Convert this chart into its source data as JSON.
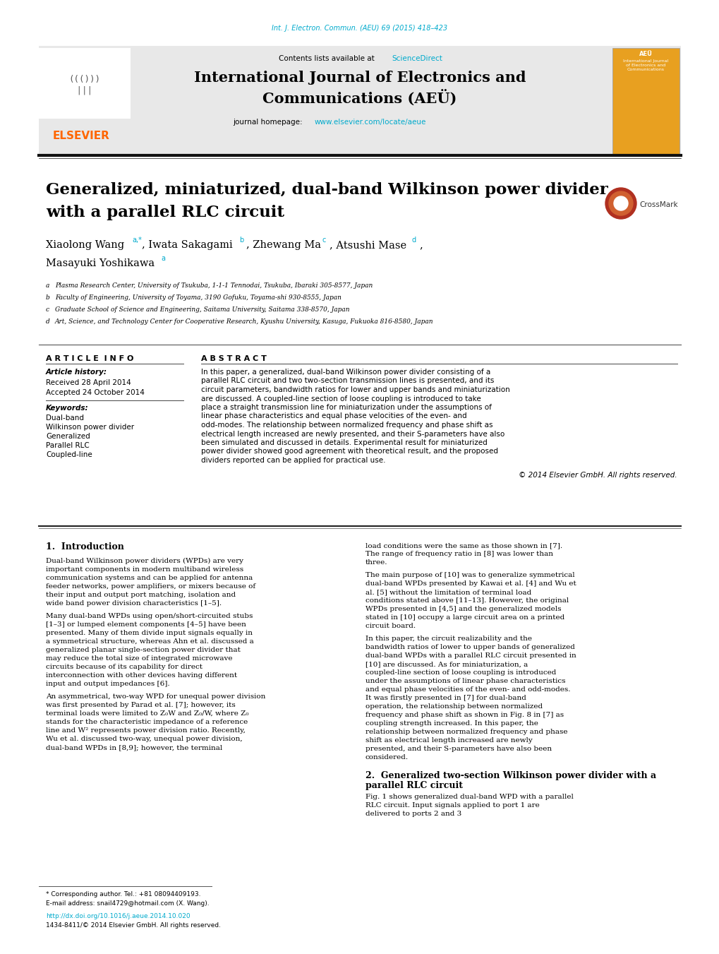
{
  "page_width": 10.2,
  "page_height": 13.51,
  "bg_color": "#ffffff",
  "journal_ref": "Int. J. Electron. Commun. (AEU) 69 (2015) 418–423",
  "journal_ref_color": "#00aacc",
  "header_bg": "#e8e8e8",
  "sciencedirect_color": "#00aacc",
  "journal_title_line1": "International Journal of Electronics and",
  "journal_title_line2": "Communications (AEÜ)",
  "homepage_url_color": "#00aacc",
  "paper_title_line1": "Generalized, miniaturized, dual-band Wilkinson power divider",
  "paper_title_line2": "with a parallel RLC circuit",
  "article_info_title": "A R T I C L E  I N F O",
  "abstract_title": "A B S T R A C T",
  "article_history_label": "Article history:",
  "received": "Received 28 April 2014",
  "accepted": "Accepted 24 October 2014",
  "keywords_label": "Keywords:",
  "keywords": [
    "Dual-band",
    "Wilkinson power divider",
    "Generalized",
    "Parallel RLC",
    "Coupled-line"
  ],
  "abstract_text": "In this paper, a generalized, dual-band Wilkinson power divider consisting of a parallel RLC circuit and two two-section transmission lines is presented, and its circuit parameters, bandwidth ratios for lower and upper bands and miniaturization are discussed. A coupled-line section of loose coupling is introduced to take place a straight transmission line for miniaturization under the assumptions of linear phase characteristics and equal phase velocities of the even- and odd-modes. The relationship between normalized frequency and phase shift as electrical length increased are newly presented, and their S-parameters have also been simulated and discussed in details. Experimental result for miniaturized power divider showed good agreement with theoretical result, and the proposed dividers reported can be applied for practical use.",
  "copyright": "© 2014 Elsevier GmbH. All rights reserved.",
  "section1_title": "1.  Introduction",
  "intro_col1_para1": "    Dual-band Wilkinson power dividers (WPDs) are very important components in modern multiband wireless communication systems and can be applied for antenna feeder networks, power amplifiers, or mixers because of their input and output port matching, isolation and wide band power division characteristics [1–5].",
  "intro_col1_para2": "    Many dual-band WPDs using open/short-circuited stubs [1–3] or lumped element components [4–5] have been presented. Many of them divide input signals equally in a symmetrical structure, whereas Ahn et al. discussed a generalized planar single-section power divider that may reduce the total size of integrated microwave circuits because of its capability for direct interconnection with other devices having different input and output impedances [6].",
  "intro_col1_para3": "    An asymmetrical, two-way WPD for unequal power division was first presented by Parad et al. [7]; however, its terminal loads were limited to Z₀W and Z₀/W, where Z₀ stands for the characteristic impedance of a reference line and W² represents power division ratio. Recently, Wu et al. discussed two-way, unequal power division, dual-band WPDs in [8,9]; however, the terminal",
  "intro_col2_para1": "load conditions were the same as those shown in [7]. The range of frequency ratio in [8] was lower than three.",
  "intro_col2_para2": "    The main purpose of [10] was to generalize symmetrical dual-band WPDs presented by Kawai et al. [4] and Wu et al. [5] without the limitation of terminal load conditions stated above [11–13]. However, the original WPDs presented in [4,5] and the generalized models stated in [10] occupy a large circuit area on a printed circuit board.",
  "intro_col2_para3": "    In this paper, the circuit realizability and the bandwidth ratios of lower to upper bands of generalized dual-band WPDs with a parallel RLC circuit presented in [10] are discussed. As for miniaturization, a coupled-line section of loose coupling is introduced under the assumptions of linear phase characteristics and equal phase velocities of the even- and odd-modes. It was firstly presented in [7] for dual-band operation, the relationship between normalized frequency and phase shift as shown in Fig. 8 in [7] as coupling strength increased. In this paper, the relationship between normalized frequency and phase shift as electrical length increased are newly presented, and their S-parameters have also been considered.",
  "section2_title": "2.  Generalized two-section Wilkinson power divider with a\n    parallel RLC circuit",
  "section2_text": "    Fig. 1 shows generalized dual-band WPD with a parallel RLC circuit. Input signals applied to port 1 are delivered to ports 2 and 3",
  "aff_a": "a Plasma Research Center, University of Tsukuba, 1-1-1 Tennodai, Tsukuba, Ibaraki 305-8577, Japan",
  "aff_b": "b Faculty of Engineering, University of Toyama, 3190 Gofuku, Toyama-shi 930-8555, Japan",
  "aff_c": "c Graduate School of Science and Engineering, Saitama University, Saitama 338-8570, Japan",
  "aff_d": "d Art, Science, and Technology Center for Cooperative Research, Kyushu University, Kasuga, Fukuoka 816-8580, Japan",
  "footnote_star": "* Corresponding author. Tel.: +81 08094409193.",
  "footnote_email": "E-mail address: snail4729@hotmail.com (X. Wang).",
  "footnote_doi": "http://dx.doi.org/10.1016/j.aeue.2014.10.020",
  "footnote_issn": "1434-8411/© 2014 Elsevier GmbH. All rights reserved.",
  "link_color": "#00aacc",
  "text_color": "#000000"
}
